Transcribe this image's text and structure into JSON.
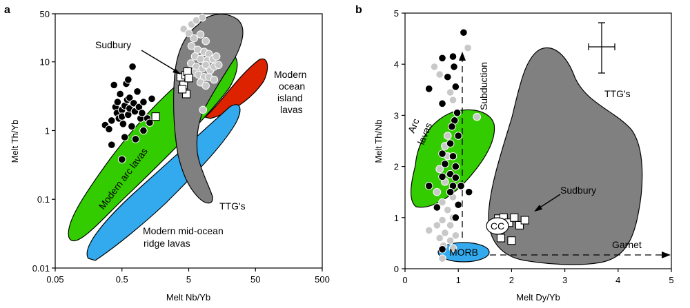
{
  "chart_data": [
    {
      "panel": "a",
      "type": "scatter",
      "xlabel": "Melt Nb/Yb",
      "ylabel": "Melt Th/Yb",
      "xscale": "log",
      "yscale": "log",
      "xlim": [
        0.05,
        500
      ],
      "ylim": [
        0.01,
        50
      ],
      "xticks": [
        0.05,
        0.5,
        5,
        50,
        500
      ],
      "xtick_labels": [
        "0.05",
        "0.5",
        "5",
        "50",
        "500"
      ],
      "yticks": [
        0.01,
        0.1,
        1,
        10,
        50
      ],
      "ytick_labels": [
        "0.01",
        "0.1",
        "1",
        "10",
        "50"
      ],
      "fields": [
        {
          "name": "Modern arc lavas",
          "color": "#33cc00"
        },
        {
          "name": "Modern ocean island lavas",
          "color": "#dd2200"
        },
        {
          "name": "Modern mid-ocean ridge lavas",
          "color": "#33aaee"
        },
        {
          "name": "TTG's",
          "color": "#808080"
        }
      ],
      "annotations": [
        "Sudbury",
        "Modern arc lavas",
        "Modern ocean island lavas",
        "Modern mid-ocean ridge lavas",
        "TTG's"
      ],
      "annotation_lines": {
        "sudbury": [
          "Sudbury"
        ],
        "arc": [
          "Modern arc lavas"
        ],
        "oib": [
          "Modern",
          "ocean",
          "island",
          "lavas"
        ],
        "morb": [
          "Modern mid-ocean",
          "ridge lavas"
        ],
        "ttg": [
          "TTG's"
        ]
      },
      "series": [
        {
          "marker": "black circle",
          "values": [
            [
              0.28,
              1.2
            ],
            [
              0.32,
              1.05
            ],
            [
              0.35,
              1.4
            ],
            [
              0.35,
              0.62
            ],
            [
              0.38,
              4.6
            ],
            [
              0.4,
              2.2
            ],
            [
              0.42,
              1.8
            ],
            [
              0.43,
              2.6
            ],
            [
              0.45,
              1.5
            ],
            [
              0.47,
              3.4
            ],
            [
              0.5,
              2.0
            ],
            [
              0.5,
              1.6
            ],
            [
              0.52,
              1.25
            ],
            [
              0.55,
              2.3
            ],
            [
              0.55,
              0.8
            ],
            [
              0.58,
              4.8
            ],
            [
              0.6,
              2.8
            ],
            [
              0.62,
              1.7
            ],
            [
              0.65,
              3.0
            ],
            [
              0.65,
              2.1
            ],
            [
              0.7,
              1.15
            ],
            [
              0.72,
              8.5
            ],
            [
              0.75,
              2.5
            ],
            [
              0.78,
              1.9
            ],
            [
              0.85,
              3.7
            ],
            [
              0.9,
              2.2
            ],
            [
              0.95,
              1.5
            ],
            [
              1.0,
              1.8
            ],
            [
              1.05,
              2.6
            ],
            [
              1.2,
              1.5
            ],
            [
              1.3,
              1.3
            ],
            [
              1.4,
              2.9
            ],
            [
              1.05,
              1.0
            ],
            [
              0.8,
              0.75
            ],
            [
              0.5,
              0.38
            ],
            [
              0.62,
              5.5
            ]
          ]
        },
        {
          "marker": "gray circle",
          "values": [
            [
              4.2,
              30
            ],
            [
              5.5,
              35
            ],
            [
              6.5,
              40
            ],
            [
              8.0,
              44
            ],
            [
              5.0,
              26
            ],
            [
              6.0,
              22
            ],
            [
              7.5,
              25
            ],
            [
              9.0,
              20
            ],
            [
              5.5,
              17
            ],
            [
              6.8,
              15
            ],
            [
              8.5,
              14
            ],
            [
              10.0,
              13
            ],
            [
              6.2,
              12
            ],
            [
              7.5,
              11
            ],
            [
              9.5,
              10.5
            ],
            [
              11.5,
              11
            ],
            [
              13.0,
              12
            ],
            [
              5.4,
              9.5
            ],
            [
              6.5,
              8.5
            ],
            [
              8.0,
              8.0
            ],
            [
              9.0,
              9.0
            ],
            [
              10.5,
              7.5
            ],
            [
              12.0,
              8.5
            ],
            [
              14.0,
              9.0
            ],
            [
              6.0,
              7.0
            ],
            [
              7.0,
              6.5
            ],
            [
              8.5,
              6.0
            ],
            [
              10.0,
              6.0
            ],
            [
              7.5,
              5.0
            ],
            [
              9.0,
              4.5
            ],
            [
              12.0,
              5.5
            ],
            [
              8.2,
              2.0
            ]
          ]
        },
        {
          "marker": "white square",
          "values": [
            [
              3.8,
              6.0
            ],
            [
              4.2,
              4.6
            ],
            [
              4.5,
              6.4
            ],
            [
              4.8,
              7.2
            ],
            [
              5.0,
              5.8
            ],
            [
              4.6,
              3.4
            ],
            [
              4.0,
              4.0
            ],
            [
              1.6,
              1.6
            ]
          ]
        }
      ]
    },
    {
      "panel": "b",
      "type": "scatter",
      "xlabel": "Melt Dy/Yb",
      "ylabel": "Melt Th/Nb",
      "xlim": [
        0,
        5
      ],
      "ylim": [
        0,
        5
      ],
      "xticks": [
        0,
        1,
        2,
        3,
        4,
        5
      ],
      "yticks": [
        0,
        1,
        2,
        3,
        4,
        5
      ],
      "fields": [
        {
          "name": "Arc lavas",
          "color": "#33cc00"
        },
        {
          "name": "MORB",
          "color": "#33aaee"
        },
        {
          "name": "TTG's",
          "color": "#808080"
        }
      ],
      "annotations": [
        "Arc lavas",
        "MORB",
        "TTG's",
        "Sudbury",
        "CC",
        "Subduction",
        "Garnet"
      ],
      "annotation_lines": {
        "arc": [
          "Arc",
          "lavas"
        ],
        "morb": [
          "MORB"
        ],
        "ttg": [
          "TTG's"
        ],
        "sudbury": [
          "Sudbury"
        ],
        "cc": [
          "CC"
        ],
        "subduction": [
          "Subduction"
        ],
        "garnet": [
          "Garnet"
        ]
      },
      "trend_arrows": [
        {
          "label": "Subduction",
          "from": [
            1.1,
            0.35
          ],
          "to": [
            1.1,
            4.6
          ]
        },
        {
          "label": "Garnet",
          "from": [
            1.6,
            0.25
          ],
          "to": [
            5.0,
            0.25
          ]
        }
      ],
      "error_bar": {
        "x": 3.75,
        "y": 4.3,
        "dx": 0.25,
        "dy": 0.5
      },
      "series": [
        {
          "marker": "black circle",
          "values": [
            [
              1.1,
              4.62
            ],
            [
              0.7,
              4.12
            ],
            [
              0.9,
              4.15
            ],
            [
              0.92,
              3.95
            ],
            [
              0.8,
              3.75
            ],
            [
              0.45,
              3.52
            ],
            [
              0.95,
              3.56
            ],
            [
              0.7,
              3.23
            ],
            [
              0.98,
              3.05
            ],
            [
              0.93,
              2.9
            ],
            [
              0.88,
              2.78
            ],
            [
              1.0,
              2.6
            ],
            [
              0.85,
              2.45
            ],
            [
              0.9,
              2.2
            ],
            [
              0.7,
              2.25
            ],
            [
              0.75,
              2.05
            ],
            [
              0.95,
              2.0
            ],
            [
              0.85,
              1.85
            ],
            [
              0.7,
              1.8
            ],
            [
              0.95,
              1.78
            ],
            [
              0.9,
              1.62
            ],
            [
              0.85,
              1.5
            ],
            [
              1.05,
              1.62
            ],
            [
              0.45,
              1.62
            ],
            [
              1.2,
              1.5
            ],
            [
              0.6,
              1.2
            ],
            [
              1.0,
              1.25
            ],
            [
              0.95,
              1.0
            ],
            [
              0.7,
              0.38
            ]
          ]
        },
        {
          "marker": "gray circle",
          "values": [
            [
              1.18,
              4.32
            ],
            [
              0.55,
              3.95
            ],
            [
              0.65,
              3.8
            ],
            [
              0.85,
              3.45
            ],
            [
              0.9,
              3.3
            ],
            [
              1.35,
              2.97
            ],
            [
              0.8,
              2.6
            ],
            [
              0.75,
              2.4
            ],
            [
              0.8,
              2.2
            ],
            [
              0.65,
              1.95
            ],
            [
              0.75,
              1.7
            ],
            [
              0.9,
              1.4
            ],
            [
              0.6,
              1.5
            ],
            [
              0.7,
              1.3
            ],
            [
              0.8,
              1.15
            ],
            [
              0.9,
              1.0
            ],
            [
              0.7,
              0.95
            ],
            [
              0.6,
              0.85
            ],
            [
              0.85,
              0.85
            ],
            [
              0.45,
              0.75
            ],
            [
              0.75,
              0.7
            ],
            [
              0.95,
              0.65
            ],
            [
              0.65,
              0.6
            ],
            [
              0.85,
              0.55
            ],
            [
              0.72,
              0.45
            ],
            [
              0.9,
              0.4
            ],
            [
              0.7,
              0.2
            ]
          ]
        },
        {
          "marker": "white square",
          "values": [
            [
              1.75,
              0.98
            ],
            [
              1.85,
              1.0
            ],
            [
              1.95,
              0.9
            ],
            [
              2.05,
              1.0
            ],
            [
              2.15,
              0.85
            ],
            [
              2.25,
              0.95
            ],
            [
              1.8,
              0.6
            ],
            [
              2.0,
              0.55
            ]
          ]
        }
      ]
    }
  ],
  "panel_labels": [
    "a",
    "b"
  ]
}
